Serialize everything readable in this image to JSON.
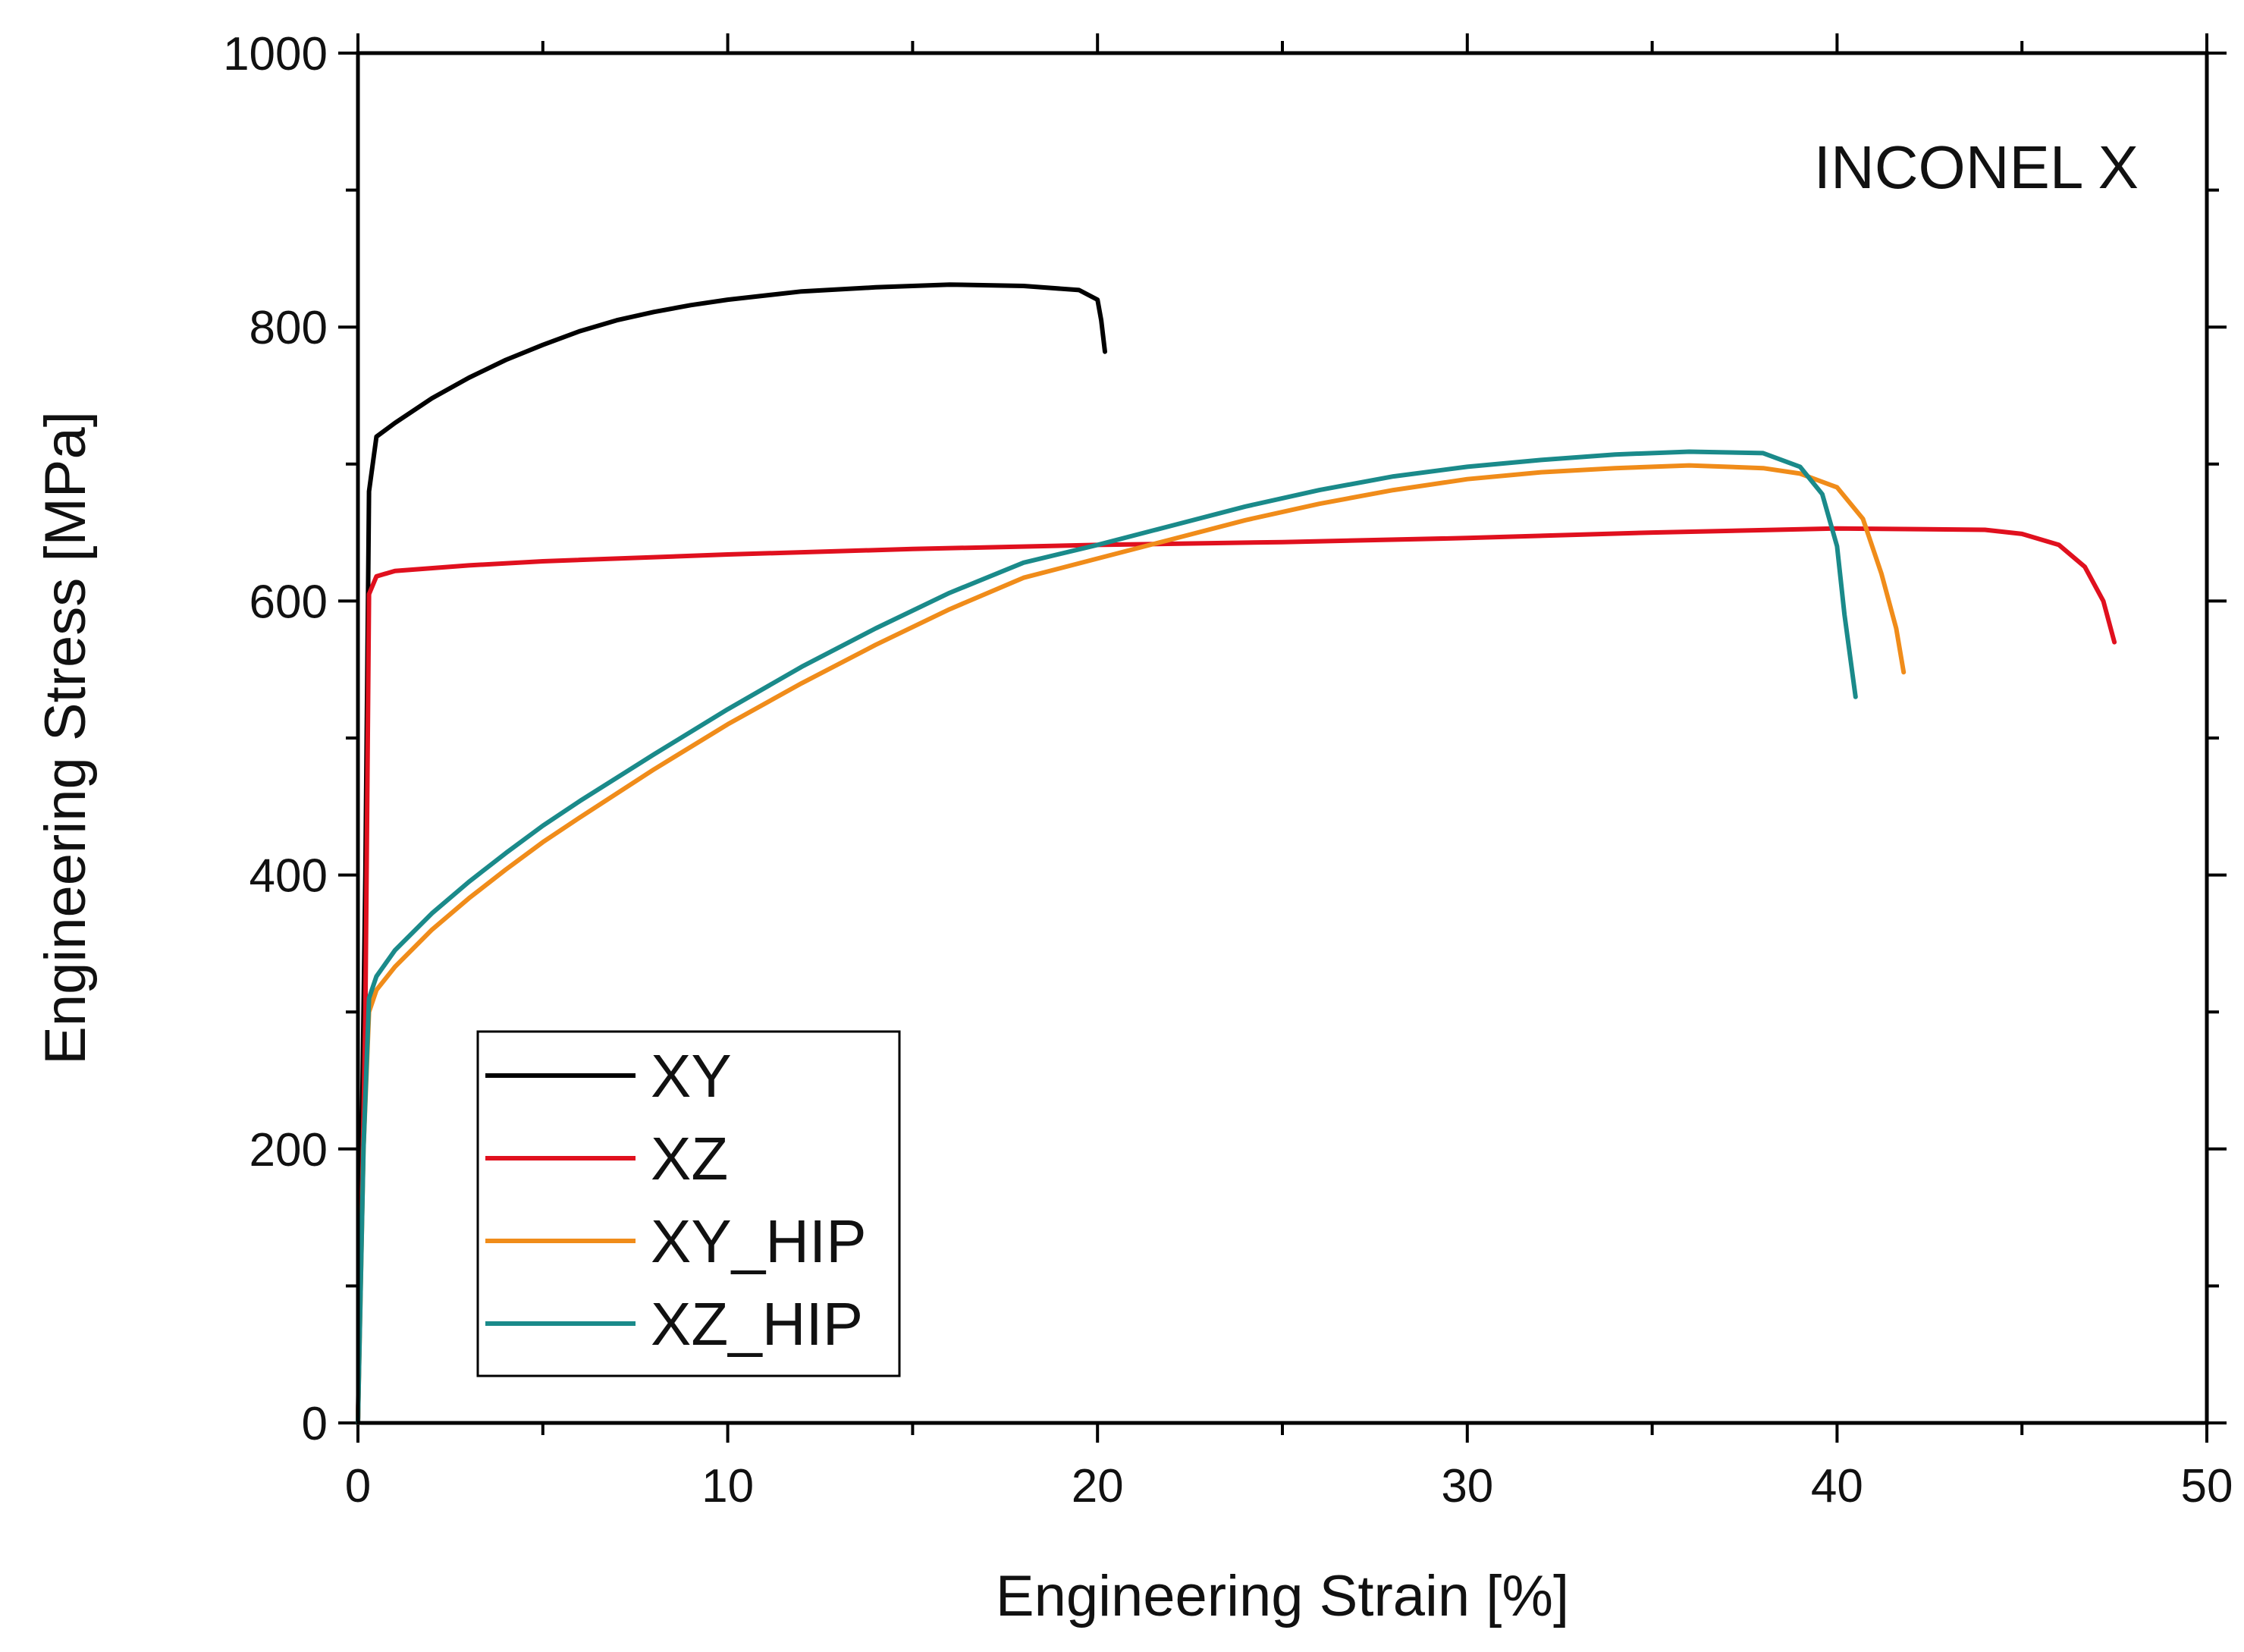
{
  "chart_data": {
    "type": "line",
    "title": "",
    "annotation": "INCONEL X",
    "xlabel": "Engineering Strain [%]",
    "ylabel": "Engineering Stress [MPa]",
    "xlim": [
      0,
      50
    ],
    "ylim": [
      0,
      1000
    ],
    "xticks": [
      0,
      10,
      20,
      30,
      40,
      50
    ],
    "yticks": [
      0,
      200,
      400,
      600,
      800,
      1000
    ],
    "legend_position": "lower-left",
    "series": [
      {
        "name": "XY",
        "color": "#000000",
        "points": [
          [
            0,
            0
          ],
          [
            0.2,
            400
          ],
          [
            0.3,
            680
          ],
          [
            0.5,
            720
          ],
          [
            1,
            730
          ],
          [
            2,
            748
          ],
          [
            3,
            763
          ],
          [
            4,
            776
          ],
          [
            5,
            787
          ],
          [
            6,
            797
          ],
          [
            7,
            805
          ],
          [
            8,
            811
          ],
          [
            9,
            816
          ],
          [
            10,
            820
          ],
          [
            12,
            826
          ],
          [
            14,
            829
          ],
          [
            16,
            831
          ],
          [
            18,
            830
          ],
          [
            19.5,
            827
          ],
          [
            20,
            820
          ],
          [
            20.1,
            805
          ],
          [
            20.2,
            782
          ]
        ]
      },
      {
        "name": "XZ",
        "color": "#e0101e",
        "points": [
          [
            0,
            0
          ],
          [
            0.2,
            300
          ],
          [
            0.3,
            605
          ],
          [
            0.5,
            618
          ],
          [
            1,
            622
          ],
          [
            3,
            626
          ],
          [
            5,
            629
          ],
          [
            10,
            634
          ],
          [
            15,
            638
          ],
          [
            20,
            641
          ],
          [
            25,
            643
          ],
          [
            30,
            646
          ],
          [
            35,
            650
          ],
          [
            40,
            653
          ],
          [
            44,
            652
          ],
          [
            45,
            649
          ],
          [
            46,
            641
          ],
          [
            46.7,
            625
          ],
          [
            47.2,
            600
          ],
          [
            47.5,
            570
          ]
        ]
      },
      {
        "name": "XY_HIP",
        "color": "#f08c1a",
        "points": [
          [
            0,
            0
          ],
          [
            0.15,
            200
          ],
          [
            0.3,
            300
          ],
          [
            0.5,
            316
          ],
          [
            1,
            333
          ],
          [
            2,
            360
          ],
          [
            3,
            383
          ],
          [
            4,
            404
          ],
          [
            5,
            424
          ],
          [
            6,
            442
          ],
          [
            8,
            477
          ],
          [
            10,
            510
          ],
          [
            12,
            540
          ],
          [
            14,
            568
          ],
          [
            16,
            594
          ],
          [
            18,
            617
          ],
          [
            20,
            631
          ],
          [
            22,
            645
          ],
          [
            24,
            659
          ],
          [
            26,
            671
          ],
          [
            28,
            681
          ],
          [
            30,
            689
          ],
          [
            32,
            694
          ],
          [
            34,
            697
          ],
          [
            36,
            699
          ],
          [
            38,
            697
          ],
          [
            39,
            693
          ],
          [
            40,
            683
          ],
          [
            40.7,
            660
          ],
          [
            41.2,
            620
          ],
          [
            41.6,
            580
          ],
          [
            41.8,
            548
          ]
        ]
      },
      {
        "name": "XZ_HIP",
        "color": "#1a8a8a",
        "points": [
          [
            0,
            0
          ],
          [
            0.15,
            200
          ],
          [
            0.3,
            310
          ],
          [
            0.5,
            326
          ],
          [
            1,
            345
          ],
          [
            2,
            372
          ],
          [
            3,
            395
          ],
          [
            4,
            416
          ],
          [
            5,
            436
          ],
          [
            6,
            454
          ],
          [
            8,
            488
          ],
          [
            10,
            521
          ],
          [
            12,
            552
          ],
          [
            14,
            580
          ],
          [
            16,
            606
          ],
          [
            18,
            628
          ],
          [
            20,
            641
          ],
          [
            22,
            655
          ],
          [
            24,
            669
          ],
          [
            26,
            681
          ],
          [
            28,
            691
          ],
          [
            30,
            698
          ],
          [
            32,
            703
          ],
          [
            34,
            707
          ],
          [
            36,
            709
          ],
          [
            38,
            708
          ],
          [
            39,
            698
          ],
          [
            39.6,
            678
          ],
          [
            40,
            640
          ],
          [
            40.2,
            590
          ],
          [
            40.5,
            530
          ]
        ]
      }
    ]
  }
}
